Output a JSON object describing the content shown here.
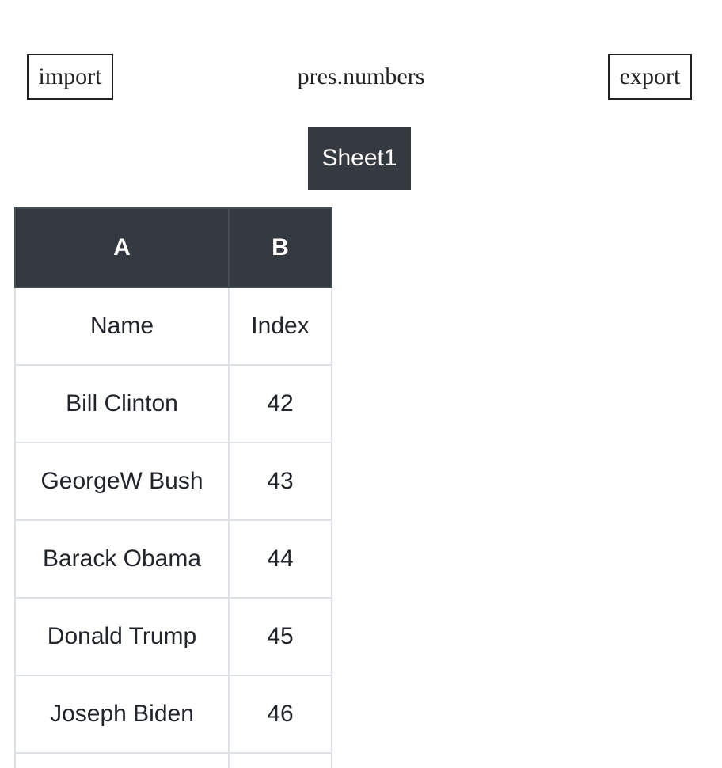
{
  "toolbar": {
    "import_label": "import",
    "title": "pres.numbers",
    "export_label": "export"
  },
  "sheets": [
    {
      "label": "Sheet1",
      "active": true
    }
  ],
  "table": {
    "columns": [
      "A",
      "B"
    ],
    "rows": [
      [
        "Name",
        "Index"
      ],
      [
        "Bill Clinton",
        "42"
      ],
      [
        "GeorgeW Bush",
        "43"
      ],
      [
        "Barack Obama",
        "44"
      ],
      [
        "Donald Trump",
        "45"
      ],
      [
        "Joseph Biden",
        "46"
      ],
      [
        "",
        ""
      ]
    ]
  }
}
